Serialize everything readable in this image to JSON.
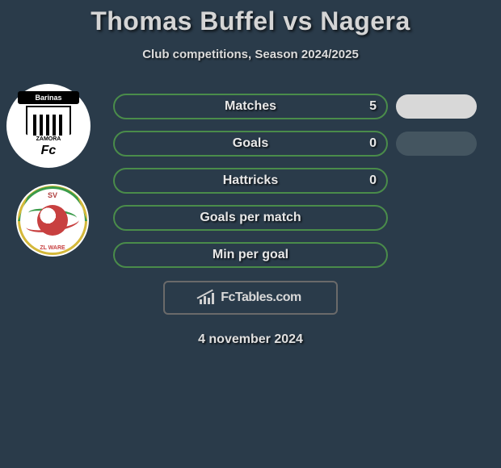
{
  "header": {
    "title": "Thomas Buffel vs Nagera",
    "subtitle": "Club competitions, Season 2024/2025"
  },
  "badges": {
    "badge1": {
      "banner_text": "Barinas",
      "shield_text": "ZAMORA",
      "fc_text": "Fc"
    },
    "badge2": {
      "top_text": "SV",
      "bottom_text": "ZL WARE"
    }
  },
  "stats": [
    {
      "label": "Matches",
      "value": "5",
      "show_value": true,
      "pill": "light"
    },
    {
      "label": "Goals",
      "value": "0",
      "show_value": true,
      "pill": "dark"
    },
    {
      "label": "Hattricks",
      "value": "0",
      "show_value": true,
      "pill": null
    },
    {
      "label": "Goals per match",
      "value": "",
      "show_value": false,
      "pill": null
    },
    {
      "label": "Min per goal",
      "value": "",
      "show_value": false,
      "pill": null
    }
  ],
  "attribution": {
    "text": "FcTables.com"
  },
  "footer": {
    "date": "4 november 2024"
  },
  "colors": {
    "background": "#2a3b4a",
    "bar_border": "#4a8c4a",
    "pill_light": "#d8d8d8",
    "pill_dark": "#445560",
    "text": "#e0e0e0"
  }
}
